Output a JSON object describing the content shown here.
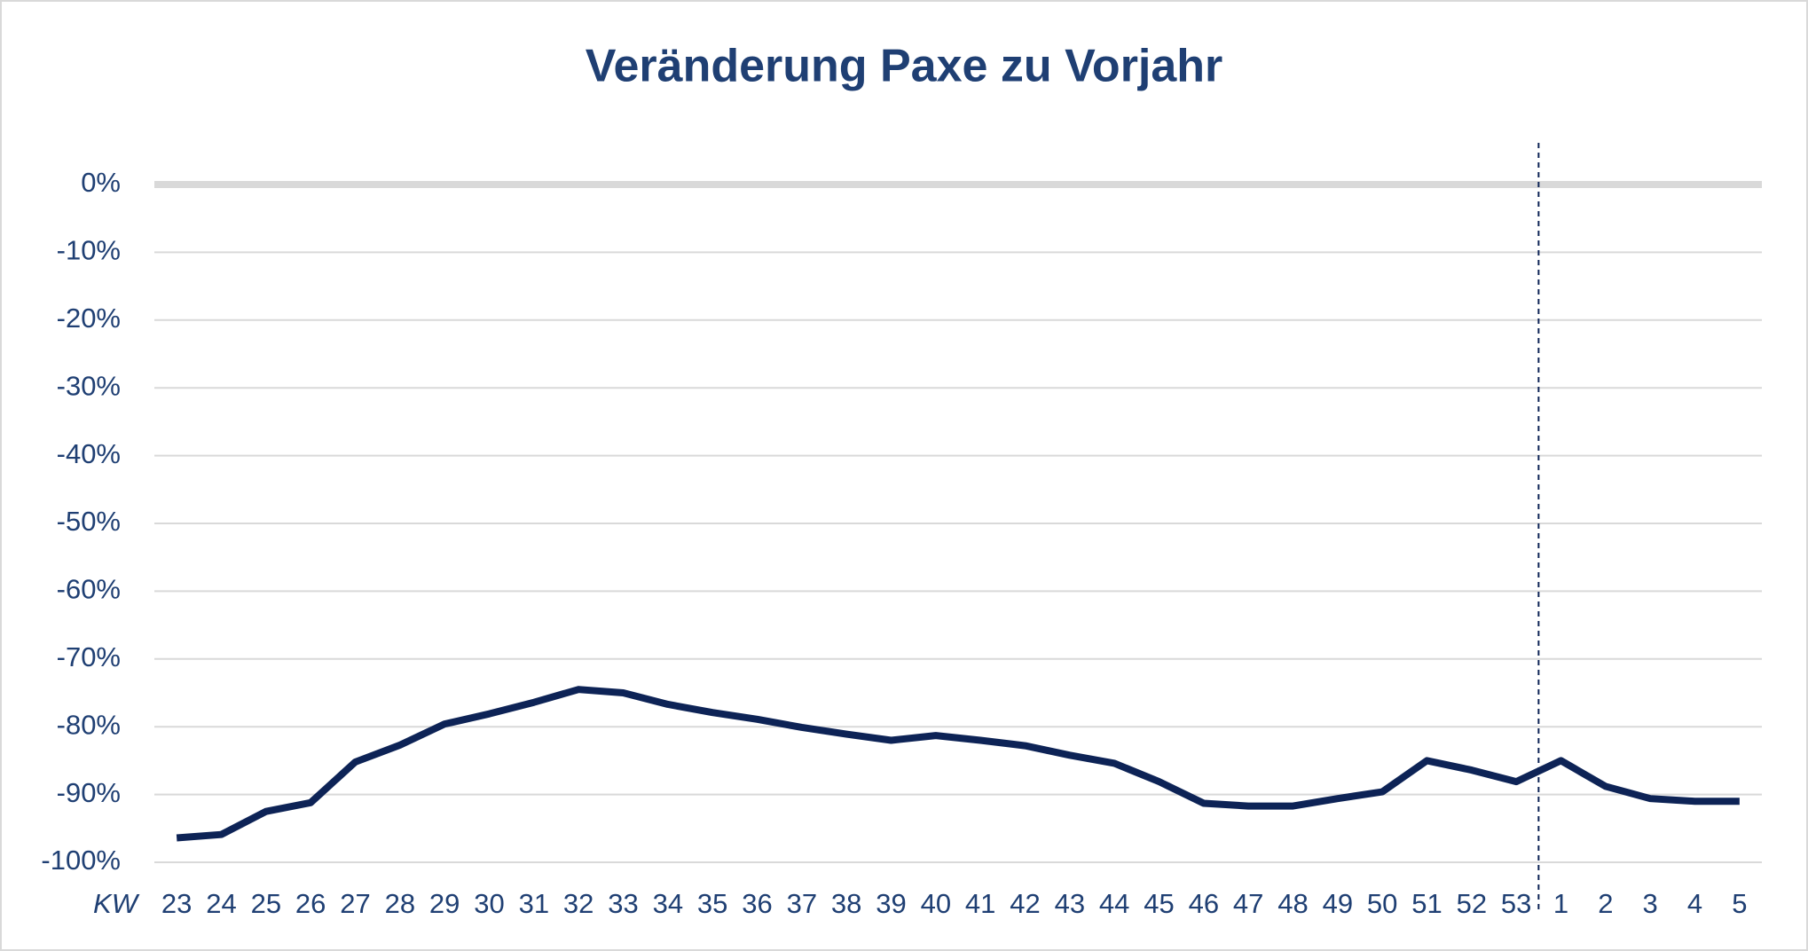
{
  "chart_data": {
    "type": "line",
    "title": "Veränderung Paxe zu Vorjahr",
    "x_label": "KW",
    "categories": [
      "23",
      "24",
      "25",
      "26",
      "27",
      "28",
      "29",
      "30",
      "31",
      "32",
      "33",
      "34",
      "35",
      "36",
      "37",
      "38",
      "39",
      "40",
      "41",
      "42",
      "43",
      "44",
      "45",
      "46",
      "47",
      "48",
      "49",
      "50",
      "51",
      "52",
      "53",
      "1",
      "2",
      "3",
      "4",
      "5"
    ],
    "series": [
      {
        "name": "Veränderung Paxe zu Vorjahr",
        "color": "#0d2356",
        "values": [
          -96.4,
          -95.9,
          -92.5,
          -91.2,
          -85.2,
          -82.7,
          -79.6,
          -78.1,
          -76.4,
          -74.5,
          -75,
          -76.7,
          -77.9,
          -78.9,
          -80.1,
          -81.1,
          -82,
          -81.3,
          -82,
          -82.8,
          -84.2,
          -85.4,
          -88.1,
          -91.3,
          -91.7,
          -91.7,
          -90.6,
          -89.6,
          -85,
          -86.4,
          -88.1,
          -85,
          -88.8,
          -90.6,
          -91,
          -91
        ]
      }
    ],
    "ylim": [
      -100,
      0
    ],
    "yticks": [
      {
        "value": 0,
        "label": "0%"
      },
      {
        "value": -10,
        "label": "-10%"
      },
      {
        "value": -20,
        "label": "-20%"
      },
      {
        "value": -30,
        "label": "-30%"
      },
      {
        "value": -40,
        "label": "-40%"
      },
      {
        "value": -50,
        "label": "-50%"
      },
      {
        "value": -60,
        "label": "-60%"
      },
      {
        "value": -70,
        "label": "-70%"
      },
      {
        "value": -80,
        "label": "-80%"
      },
      {
        "value": -90,
        "label": "-90%"
      },
      {
        "value": -100,
        "label": "-100%"
      }
    ],
    "grid": true
  }
}
